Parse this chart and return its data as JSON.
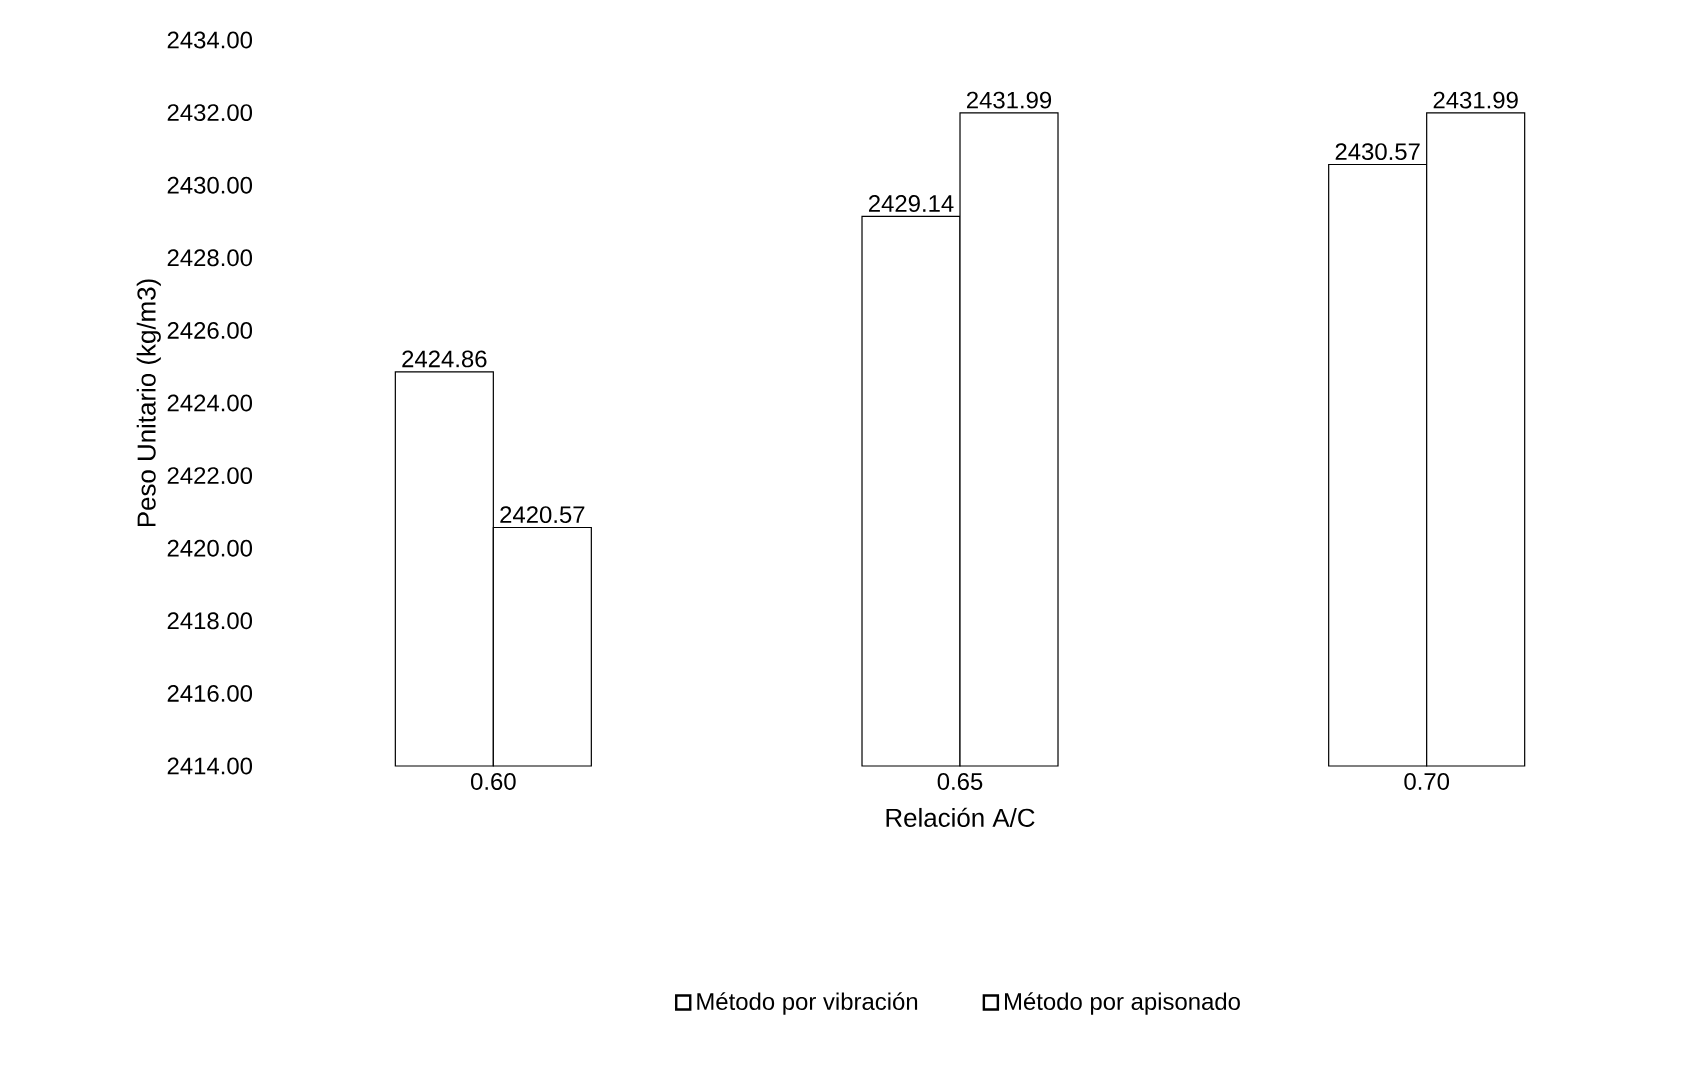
{
  "chart_data": {
    "type": "bar",
    "xlabel": "Relación A/C",
    "ylabel": "Peso Unitario (kg/m3)",
    "categories": [
      "0.60",
      "0.65",
      "0.70"
    ],
    "series": [
      {
        "name": "Método por vibración",
        "color": "#ffffff",
        "values": [
          2424.86,
          2429.14,
          2430.57
        ],
        "value_labels": [
          "2424.86",
          "2429.14",
          "2430.57"
        ]
      },
      {
        "name": "Método por apisonado",
        "color": "#ffffff",
        "values": [
          2420.57,
          2431.99,
          2431.99
        ],
        "value_labels": [
          "2420.57",
          "2431.99",
          "2431.99"
        ]
      }
    ],
    "ylim": [
      2414,
      2434
    ],
    "yticks": [
      {
        "value": 2414,
        "label": "2414.00"
      },
      {
        "value": 2416,
        "label": "2416.00"
      },
      {
        "value": 2418,
        "label": "2418.00"
      },
      {
        "value": 2420,
        "label": "2420.00"
      },
      {
        "value": 2422,
        "label": "2422.00"
      },
      {
        "value": 2424,
        "label": "2424.00"
      },
      {
        "value": 2426,
        "label": "2426.00"
      },
      {
        "value": 2428,
        "label": "2428.00"
      },
      {
        "value": 2430,
        "label": "2430.00"
      },
      {
        "value": 2432,
        "label": "2432.00"
      },
      {
        "value": 2434,
        "label": "2434.00"
      }
    ],
    "grid": false,
    "legend": "bottom"
  }
}
